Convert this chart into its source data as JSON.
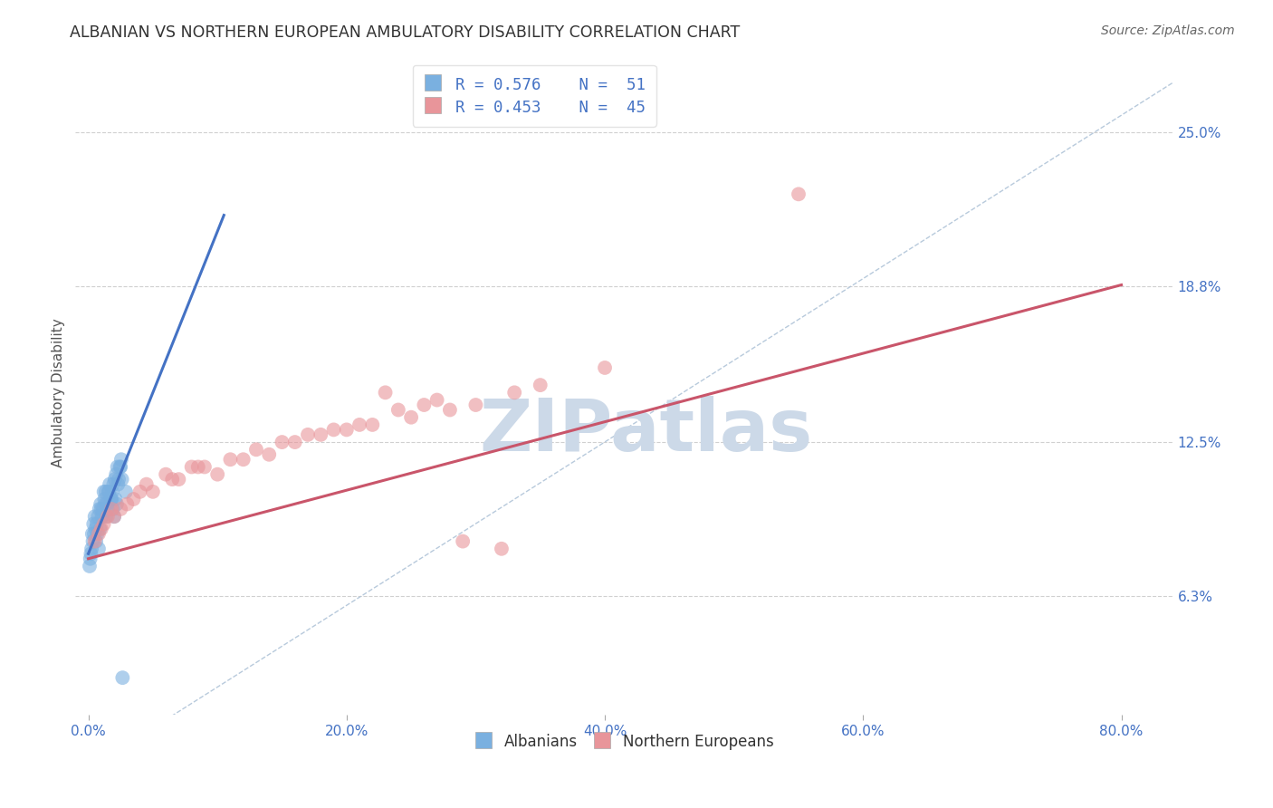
{
  "title": "ALBANIAN VS NORTHERN EUROPEAN AMBULATORY DISABILITY CORRELATION CHART",
  "source": "Source: ZipAtlas.com",
  "ylabel": "Ambulatory Disability",
  "y_tick_vals": [
    6.3,
    12.5,
    18.8,
    25.0
  ],
  "y_tick_labels": [
    "6.3%",
    "12.5%",
    "18.8%",
    "25.0%"
  ],
  "x_tick_vals": [
    0,
    20,
    40,
    60,
    80
  ],
  "x_tick_labels": [
    "0.0%",
    "20.0%",
    "40.0%",
    "60.0%",
    "80.0%"
  ],
  "xlim": [
    -1,
    84
  ],
  "ylim": [
    1.5,
    27.5
  ],
  "legend_line1": "R = 0.576    N =  51",
  "legend_line2": "R = 0.453    N =  45",
  "blue_color": "#7ab0e0",
  "pink_color": "#e8959a",
  "blue_line_color": "#4472c4",
  "pink_line_color": "#c9556a",
  "ref_line_color": "#b0c4d8",
  "grid_color": "#d0d0d0",
  "background_color": "#ffffff",
  "watermark": "ZIPatlas",
  "watermark_color": "#ccd9e8",
  "title_color": "#333333",
  "source_color": "#666666",
  "axis_label_color": "#4472c4",
  "ylabel_color": "#555555",
  "alb_x": [
    0.5,
    0.8,
    1.0,
    1.2,
    1.5,
    1.8,
    2.0,
    2.2,
    2.5,
    0.3,
    0.4,
    0.6,
    0.9,
    1.1,
    1.3,
    1.6,
    1.9,
    2.1,
    0.2,
    0.7,
    1.4,
    2.3,
    2.6,
    2.9,
    0.1,
    0.15,
    0.25,
    0.35,
    0.45,
    0.55,
    0.65,
    0.75,
    0.85,
    0.95,
    1.05,
    1.15,
    1.25,
    1.35,
    1.45,
    1.55,
    1.65,
    1.75,
    1.85,
    1.95,
    2.05,
    2.15,
    2.25,
    2.35,
    2.45,
    2.55,
    2.65
  ],
  "alb_y": [
    9.5,
    8.2,
    9.8,
    10.5,
    9.8,
    10.2,
    9.5,
    10.0,
    11.5,
    8.8,
    9.2,
    8.5,
    9.0,
    9.5,
    10.0,
    10.5,
    9.8,
    10.2,
    8.0,
    8.8,
    9.5,
    10.8,
    11.0,
    10.5,
    7.5,
    7.8,
    8.2,
    8.5,
    8.8,
    9.0,
    9.2,
    9.5,
    9.8,
    10.0,
    9.5,
    9.8,
    10.2,
    10.5,
    10.0,
    10.5,
    10.8,
    10.2,
    10.5,
    10.8,
    11.0,
    11.2,
    11.5,
    11.0,
    11.5,
    11.8,
    3.0
  ],
  "nor_x": [
    0.5,
    1.0,
    1.5,
    2.5,
    3.5,
    5.0,
    7.0,
    8.0,
    10.0,
    12.0,
    14.0,
    16.0,
    18.0,
    20.0,
    22.0,
    25.0,
    28.0,
    30.0,
    33.0,
    35.0,
    1.2,
    2.0,
    3.0,
    4.5,
    6.0,
    9.0,
    11.0,
    13.0,
    15.0,
    17.0,
    19.0,
    21.0,
    24.0,
    27.0,
    0.8,
    1.8,
    4.0,
    8.5,
    23.0,
    29.0,
    55.0,
    32.0,
    40.0,
    6.5,
    26.0
  ],
  "nor_y": [
    8.5,
    9.0,
    9.5,
    9.8,
    10.2,
    10.5,
    11.0,
    11.5,
    11.2,
    11.8,
    12.0,
    12.5,
    12.8,
    13.0,
    13.2,
    13.5,
    13.8,
    14.0,
    14.5,
    14.8,
    9.2,
    9.5,
    10.0,
    10.8,
    11.2,
    11.5,
    11.8,
    12.2,
    12.5,
    12.8,
    13.0,
    13.2,
    13.8,
    14.2,
    8.8,
    9.8,
    10.5,
    11.5,
    14.5,
    8.5,
    22.5,
    8.2,
    15.5,
    11.0,
    14.0
  ]
}
